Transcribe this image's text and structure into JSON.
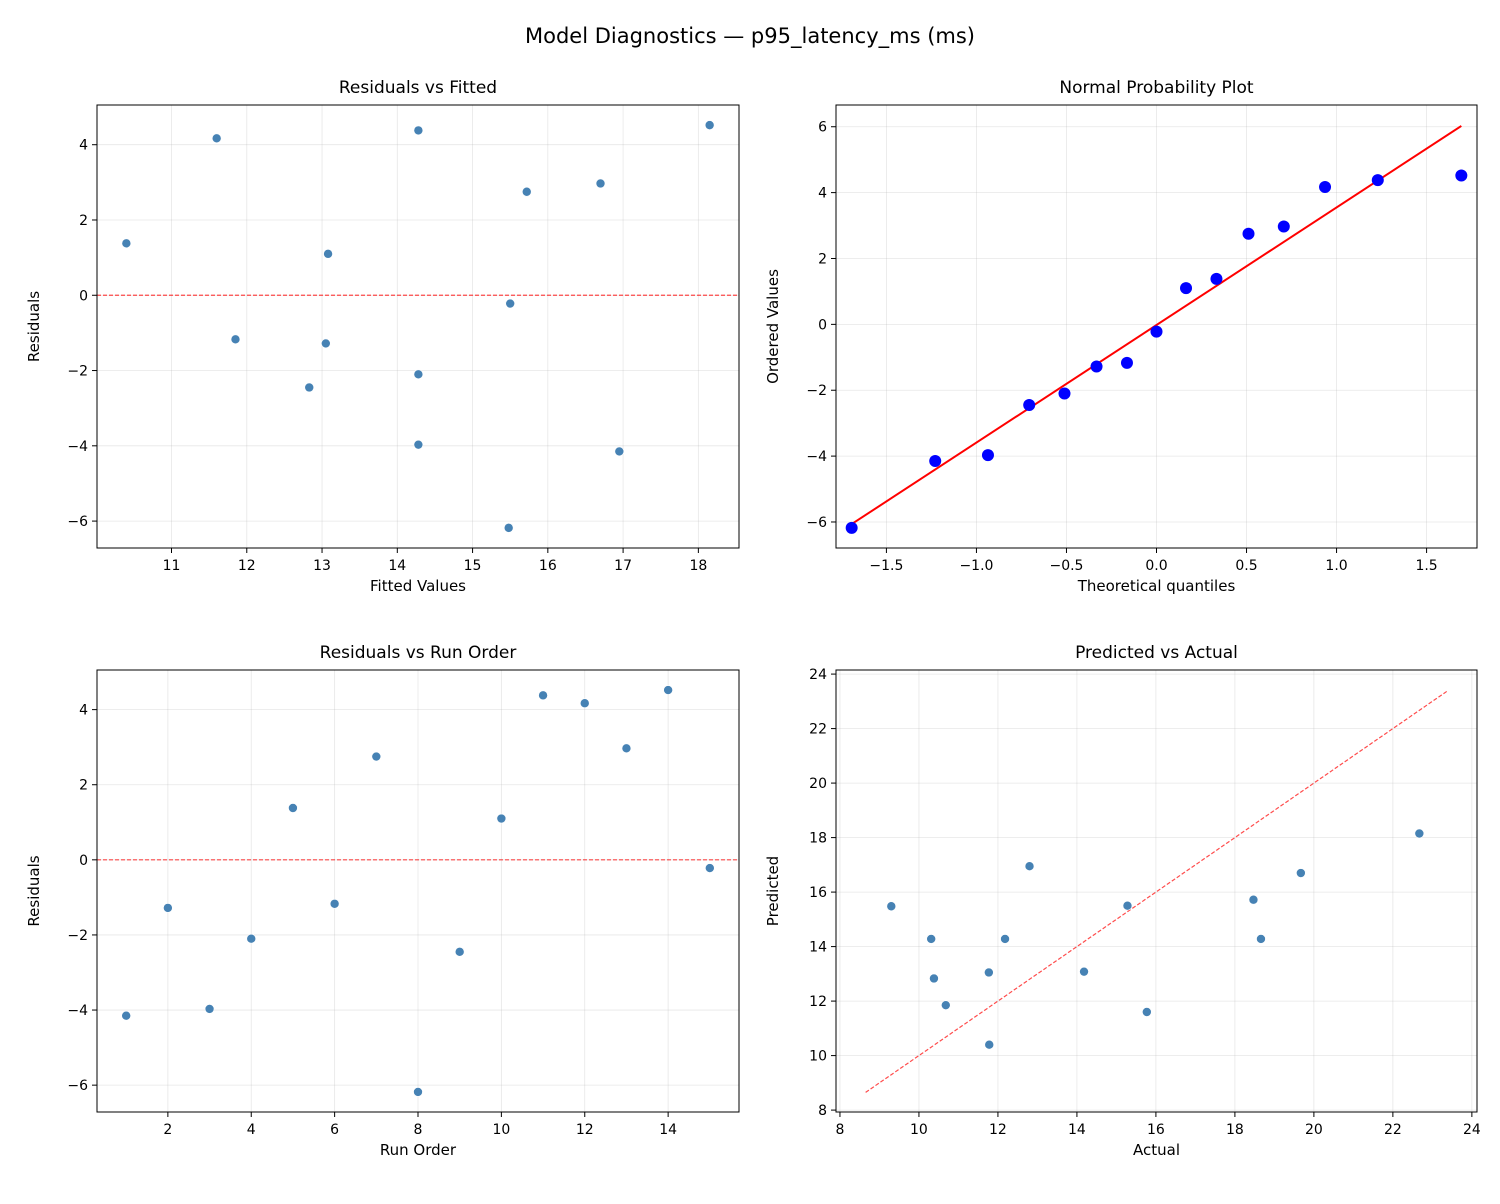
{
  "figure_title": "Model Diagnostics — p95_latency_ms (ms)",
  "colors": {
    "points": "#4682b4",
    "reference": "#ff0000",
    "probplot_points": "#0000ff",
    "probplot_line": "#ff0000",
    "grid": "#b0b0b0"
  },
  "chart_data": [
    {
      "type": "scatter",
      "title": "Residuals vs Fitted",
      "xlabel": "Fitted Values",
      "ylabel": "Residuals",
      "xlim": [
        10.01,
        18.54
      ],
      "ylim": [
        -6.715,
        5.055
      ],
      "xticks": [
        11,
        12,
        13,
        14,
        15,
        16,
        17,
        18
      ],
      "yticks": [
        -6,
        -4,
        -2,
        0,
        2,
        4
      ],
      "grid": true,
      "x": [
        16.95,
        13.05,
        14.28,
        14.28,
        10.4,
        11.85,
        15.72,
        15.48,
        12.83,
        13.08,
        14.28,
        11.6,
        16.7,
        18.15,
        15.5
      ],
      "y": [
        -4.15,
        -1.28,
        -3.97,
        -2.1,
        1.38,
        -1.17,
        2.75,
        -6.18,
        -2.45,
        1.1,
        4.38,
        4.17,
        2.97,
        4.52,
        -0.22
      ],
      "reference_line": {
        "type": "horizontal",
        "y": 0,
        "style": "dashed"
      }
    },
    {
      "type": "scatter",
      "title": "Normal Probability Plot",
      "xlabel": "Theoretical quantiles",
      "ylabel": "Ordered Values",
      "xlim": [
        -1.78,
        1.78
      ],
      "ylim": [
        -6.79,
        6.66
      ],
      "xticks": [
        -1.5,
        -1.0,
        -0.5,
        0.0,
        0.5,
        1.0,
        1.5
      ],
      "yticks": [
        -6,
        -4,
        -2,
        0,
        2,
        4,
        6
      ],
      "xtick_labels": [
        "−1.5",
        "−1.0",
        "−0.5",
        "0.0",
        "0.5",
        "1.0",
        "1.5"
      ],
      "grid": true,
      "x": [
        -1.693,
        -1.229,
        -0.936,
        -0.707,
        -0.511,
        -0.333,
        -0.164,
        0,
        0.164,
        0.333,
        0.511,
        0.707,
        0.936,
        1.229,
        1.693
      ],
      "y": [
        -6.18,
        -4.15,
        -3.97,
        -2.45,
        -2.1,
        -1.28,
        -1.17,
        -0.22,
        1.1,
        1.38,
        2.75,
        2.97,
        4.17,
        4.38,
        4.52
      ],
      "fit_line": {
        "slope": 3.57,
        "intercept": -0.02
      }
    },
    {
      "type": "scatter",
      "title": "Residuals vs Run Order",
      "xlabel": "Run Order",
      "ylabel": "Residuals",
      "xlim": [
        0.3,
        15.7
      ],
      "ylim": [
        -6.715,
        5.055
      ],
      "xticks": [
        2,
        4,
        6,
        8,
        10,
        12,
        14
      ],
      "yticks": [
        -6,
        -4,
        -2,
        0,
        2,
        4
      ],
      "grid": true,
      "x": [
        1,
        2,
        3,
        4,
        5,
        6,
        7,
        8,
        9,
        10,
        11,
        12,
        13,
        14,
        15
      ],
      "y": [
        -4.15,
        -1.28,
        -3.97,
        -2.1,
        1.38,
        -1.17,
        2.75,
        -6.18,
        -2.45,
        1.1,
        4.38,
        4.17,
        2.97,
        4.52,
        -0.22
      ],
      "reference_line": {
        "type": "horizontal",
        "y": 0,
        "style": "dashed"
      }
    },
    {
      "type": "scatter",
      "title": "Predicted vs Actual",
      "xlabel": "Actual",
      "ylabel": "Predicted",
      "xlim": [
        7.9,
        24.13
      ],
      "ylim": [
        7.93,
        24.15
      ],
      "xticks": [
        8,
        10,
        12,
        14,
        16,
        18,
        20,
        22,
        24
      ],
      "yticks": [
        8,
        10,
        12,
        14,
        16,
        18,
        20,
        22,
        24
      ],
      "grid": true,
      "x": [
        12.8,
        11.77,
        10.31,
        12.18,
        11.78,
        10.68,
        18.47,
        9.3,
        10.38,
        14.18,
        18.66,
        15.77,
        19.67,
        22.67,
        15.28
      ],
      "y": [
        16.95,
        13.05,
        14.28,
        14.28,
        10.4,
        11.85,
        15.72,
        15.48,
        12.83,
        13.08,
        14.28,
        11.6,
        16.7,
        18.15,
        15.5
      ],
      "reference_line": {
        "type": "identity",
        "from": 8.65,
        "to": 23.4,
        "style": "dashed"
      }
    }
  ]
}
